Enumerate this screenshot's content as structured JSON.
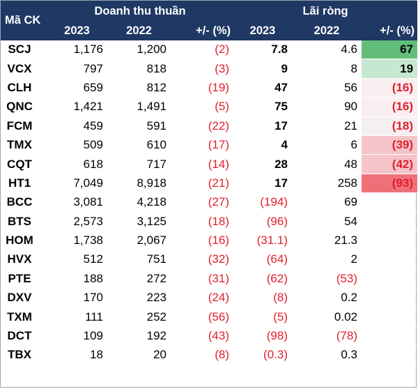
{
  "header": {
    "ticker": "Mã CK",
    "revenue_group": "Doanh thu thuần",
    "profit_group": "Lãi ròng",
    "y2023": "2023",
    "y2022": "2022",
    "change": "+/- (%)"
  },
  "colors": {
    "header_bg": "#1f3864",
    "negative_text": "#e0202a",
    "strong_green": "#63be7b",
    "light_green": "#c6e8d0",
    "light_pink": "#f8dfe3",
    "pink": "#f5c4c9",
    "red": "#f0707a"
  },
  "rows": [
    {
      "ticker": "SCJ",
      "rev2023": "1,176",
      "rev2022": "1,200",
      "revchg": "(2)",
      "np2023": "7.8",
      "np2022": "4.6",
      "npchg": "67"
    },
    {
      "ticker": "VCX",
      "rev2023": "797",
      "rev2022": "818",
      "revchg": "(3)",
      "np2023": "9",
      "np2022": "8",
      "npchg": "19"
    },
    {
      "ticker": "CLH",
      "rev2023": "659",
      "rev2022": "812",
      "revchg": "(19)",
      "np2023": "47",
      "np2022": "56",
      "npchg": "(16)"
    },
    {
      "ticker": "QNC",
      "rev2023": "1,421",
      "rev2022": "1,491",
      "revchg": "(5)",
      "np2023": "75",
      "np2022": "90",
      "npchg": "(16)"
    },
    {
      "ticker": "FCM",
      "rev2023": "459",
      "rev2022": "591",
      "revchg": "(22)",
      "np2023": "17",
      "np2022": "21",
      "npchg": "(18)"
    },
    {
      "ticker": "TMX",
      "rev2023": "509",
      "rev2022": "610",
      "revchg": "(17)",
      "np2023": "4",
      "np2022": "6",
      "npchg": "(39)"
    },
    {
      "ticker": "CQT",
      "rev2023": "618",
      "rev2022": "717",
      "revchg": "(14)",
      "np2023": "28",
      "np2022": "48",
      "npchg": "(42)"
    },
    {
      "ticker": "HT1",
      "rev2023": "7,049",
      "rev2022": "8,918",
      "revchg": "(21)",
      "np2023": "17",
      "np2022": "258",
      "npchg": "(93)"
    },
    {
      "ticker": "BCC",
      "rev2023": "3,081",
      "rev2022": "4,218",
      "revchg": "(27)",
      "np2023": "(194)",
      "np2022": "69",
      "npchg": ""
    },
    {
      "ticker": "BTS",
      "rev2023": "2,573",
      "rev2022": "3,125",
      "revchg": "(18)",
      "np2023": "(96)",
      "np2022": "54",
      "npchg": ""
    },
    {
      "ticker": "HOM",
      "rev2023": "1,738",
      "rev2022": "2,067",
      "revchg": "(16)",
      "np2023": "(31.1)",
      "np2022": "21.3",
      "npchg": ""
    },
    {
      "ticker": "HVX",
      "rev2023": "512",
      "rev2022": "751",
      "revchg": "(32)",
      "np2023": "(64)",
      "np2022": "2",
      "npchg": ""
    },
    {
      "ticker": "PTE",
      "rev2023": "188",
      "rev2022": "272",
      "revchg": "(31)",
      "np2023": "(62)",
      "np2022": "(53)",
      "npchg": ""
    },
    {
      "ticker": "DXV",
      "rev2023": "170",
      "rev2022": "223",
      "revchg": "(24)",
      "np2023": "(8)",
      "np2022": "0.2",
      "npchg": ""
    },
    {
      "ticker": "TXM",
      "rev2023": "111",
      "rev2022": "252",
      "revchg": "(56)",
      "np2023": "(5)",
      "np2022": "0.02",
      "npchg": ""
    },
    {
      "ticker": "DCT",
      "rev2023": "109",
      "rev2022": "192",
      "revchg": "(43)",
      "np2023": "(98)",
      "np2022": "(78)",
      "npchg": ""
    },
    {
      "ticker": "TBX",
      "rev2023": "18",
      "rev2022": "20",
      "revchg": "(8)",
      "np2023": "(0.3)",
      "np2022": "0.3",
      "npchg": ""
    }
  ]
}
